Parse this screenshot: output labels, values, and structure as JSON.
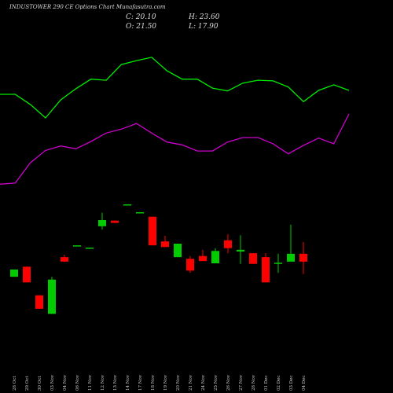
{
  "chart_data": {
    "type": "candlestick",
    "title": "INDUSTOWER 290 CE Options Chart Munafasutra.com",
    "ohlc_labels": [
      "C: 20.10",
      "H: 23.60",
      "O: 21.50",
      "L: 17.90"
    ],
    "categories": [
      "28 Oct",
      "29 Oct",
      "30 Oct",
      "03 Nov",
      "04 Nov",
      "06 Nov",
      "11 Nov",
      "12 Nov",
      "13 Nov",
      "14 Nov",
      "17 Nov",
      "18 Nov",
      "19 Nov",
      "20 Nov",
      "21 Nov",
      "24 Nov",
      "25 Nov",
      "26 Nov",
      "27 Nov",
      "28 Nov",
      "01 Dec",
      "02 Dec",
      "03 Dec",
      "04 Dec"
    ],
    "open": [
      17.4,
      19.2,
      14.1,
      10.8,
      20.9,
      23.0,
      22.6,
      26.4,
      27.4,
      30.3,
      28.9,
      28.1,
      23.7,
      20.9,
      20.6,
      21.1,
      19.8,
      23.9,
      21.9,
      21.6,
      20.9,
      19.7,
      20.1,
      21.5
    ],
    "high": [
      18.7,
      19.2,
      14.1,
      17.4,
      21.3,
      23.0,
      22.6,
      28.8,
      27.4,
      30.3,
      28.9,
      28.1,
      24.7,
      23.3,
      21.1,
      22.2,
      22.5,
      25.0,
      24.8,
      21.6,
      21.6,
      21.5,
      26.7,
      23.6
    ],
    "low": [
      17.4,
      16.4,
      11.7,
      10.8,
      20.1,
      23.0,
      22.6,
      25.8,
      27.0,
      30.3,
      28.9,
      23.0,
      22.7,
      20.9,
      18.1,
      20.2,
      19.8,
      21.6,
      19.7,
      19.7,
      16.4,
      18.1,
      20.1,
      17.9
    ],
    "close": [
      18.7,
      16.4,
      11.7,
      16.9,
      20.1,
      23.0,
      22.6,
      27.5,
      27.0,
      30.3,
      28.9,
      23.0,
      22.7,
      23.3,
      18.5,
      20.2,
      22.0,
      22.5,
      22.2,
      19.7,
      16.4,
      19.9,
      21.5,
      20.1
    ],
    "up_color": "#00cc00",
    "down_color": "#ff0000",
    "lines": [
      {
        "color": "#00ee00",
        "values": [
          49.9,
          49.9,
          48.1,
          45.7,
          48.9,
          50.9,
          52.6,
          52.4,
          55.2,
          55.9,
          56.5,
          54.1,
          52.6,
          52.6,
          51.0,
          50.5,
          51.9,
          52.4,
          52.3,
          51.2,
          48.6,
          50.6,
          51.6,
          50.6
        ]
      },
      {
        "color": "#cc00cc",
        "values": [
          33.9,
          34.1,
          37.7,
          39.9,
          40.7,
          40.2,
          41.5,
          43.0,
          43.7,
          44.7,
          43.0,
          41.4,
          40.9,
          39.8,
          39.8,
          41.4,
          42.2,
          42.2,
          41.1,
          39.3,
          40.8,
          42.1,
          41.1,
          46.4
        ]
      }
    ],
    "ylim": [
      -3.3,
      66.7
    ]
  }
}
